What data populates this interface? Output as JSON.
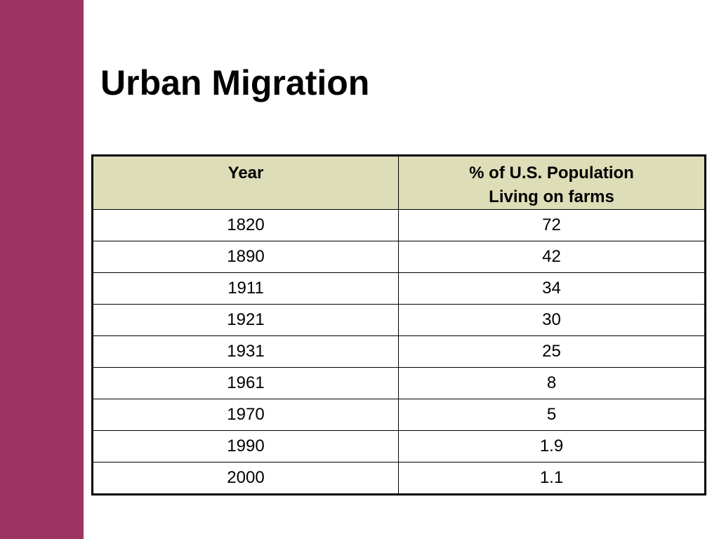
{
  "colors": {
    "side_bar": "#9B3461",
    "header_fill": "#DDDDB8",
    "background": "#FFFFFF",
    "border": "#000000"
  },
  "slide": {
    "title": "Urban Migration"
  },
  "table": {
    "headers": {
      "year": "Year",
      "percent_line1": "% of U.S. Population",
      "percent_line2": "Living on farms"
    },
    "rows": [
      {
        "year": "1820",
        "percent": "72"
      },
      {
        "year": "1890",
        "percent": "42"
      },
      {
        "year": "1911",
        "percent": "34"
      },
      {
        "year": "1921",
        "percent": "30"
      },
      {
        "year": "1931",
        "percent": "25"
      },
      {
        "year": "1961",
        "percent": "8"
      },
      {
        "year": "1970",
        "percent": "5"
      },
      {
        "year": "1990",
        "percent": "1.9"
      },
      {
        "year": "2000",
        "percent": "1.1"
      }
    ]
  }
}
